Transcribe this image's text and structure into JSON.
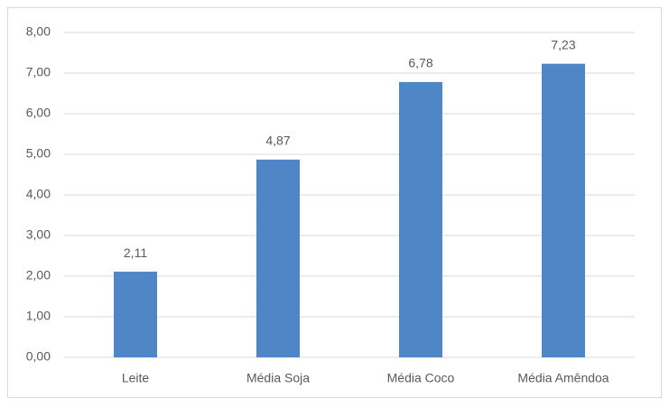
{
  "chart_data": {
    "type": "bar",
    "categories": [
      "Leite",
      "Média Soja",
      "Média Coco",
      "Média Amêndoa"
    ],
    "values": [
      2.11,
      4.87,
      6.78,
      7.23
    ],
    "value_labels": [
      "2,11",
      "4,87",
      "6,78",
      "7,23"
    ],
    "color": "#4f86c6",
    "ylim": [
      0,
      8
    ],
    "yticks": [
      {
        "value": 0,
        "label": "0,00"
      },
      {
        "value": 1,
        "label": "1,00"
      },
      {
        "value": 2,
        "label": "2,00"
      },
      {
        "value": 3,
        "label": "3,00"
      },
      {
        "value": 4,
        "label": "4,00"
      },
      {
        "value": 5,
        "label": "5,00"
      },
      {
        "value": 6,
        "label": "6,00"
      },
      {
        "value": 7,
        "label": "7,00"
      },
      {
        "value": 8,
        "label": "8,00"
      }
    ],
    "grid": true
  }
}
